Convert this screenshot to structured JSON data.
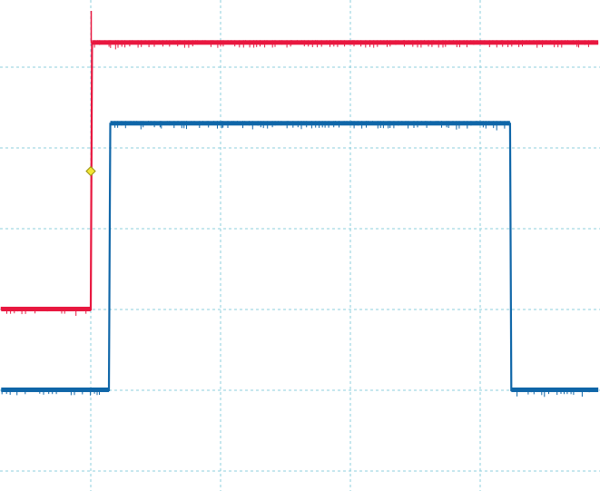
{
  "chart_data": {
    "type": "line",
    "title": "",
    "xlabel": "",
    "ylabel": "",
    "grid": true,
    "grid_divisions": {
      "x": 4.6,
      "y": 6
    },
    "xlim": [
      0,
      4.6
    ],
    "ylim": [
      0,
      6
    ],
    "series": [
      {
        "color": "#e8173f",
        "x": [
          0,
          0.69,
          0.7,
          4.6
        ],
        "y": [
          2.0,
          2.0,
          5.3,
          5.3
        ]
      },
      {
        "color": "#0f66a8",
        "x": [
          0,
          0.83,
          0.84,
          3.92,
          3.93,
          4.6
        ],
        "y": [
          1.0,
          1.0,
          4.3,
          4.3,
          1.0,
          1.0
        ]
      }
    ],
    "trigger_marker": {
      "x": 0.69,
      "y": 3.6,
      "color": "#f2e635"
    }
  }
}
